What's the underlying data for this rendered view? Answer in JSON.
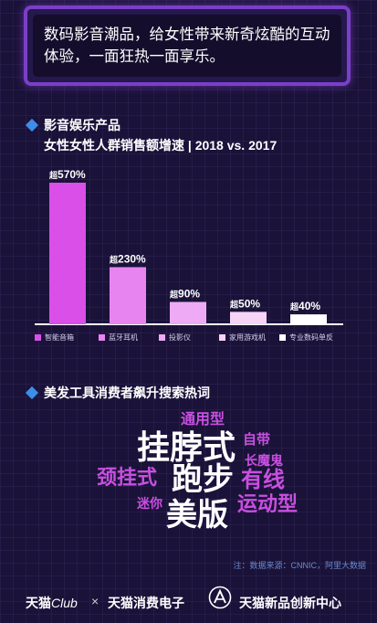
{
  "banner": {
    "text": "数码影音潮品，给女性带来新奇炫酷的互动体验，一面狂热一面享乐。"
  },
  "section1": {
    "title": "影音娱乐产品"
  },
  "chart_data": {
    "type": "bar",
    "title": "女性女性人群销售额增速 | 2018 vs. 2017",
    "categories": [
      "智能音箱",
      "蓝牙耳机",
      "投影仪",
      "家用游戏机",
      "专业数码单反"
    ],
    "values": [
      570,
      230,
      90,
      50,
      40
    ],
    "value_labels": [
      "570%",
      "230%",
      "90%",
      "50%",
      "40%"
    ],
    "value_prefix": "超",
    "colors": [
      "#d94fe8",
      "#e884f0",
      "#eeaaf4",
      "#f6d4f8",
      "#ffffff"
    ],
    "xlabel": "",
    "ylabel": "",
    "grid": false,
    "legend": "bottom"
  },
  "section2": {
    "title": "美发工具消费者飙升搜索热词"
  },
  "wordcloud": [
    {
      "text": "通用型",
      "color": "#c84fe0",
      "size": 16
    },
    {
      "text": "挂脖式",
      "color": "#ffffff",
      "size": 36
    },
    {
      "text": "自带",
      "color": "#c84fe0",
      "size": 15
    },
    {
      "text": "长魔鬼",
      "color": "#c84fe0",
      "size": 14
    },
    {
      "text": "颈挂式",
      "color": "#c84fe0",
      "size": 22
    },
    {
      "text": "跑步",
      "color": "#ffffff",
      "size": 34
    },
    {
      "text": "有线",
      "color": "#c84fe0",
      "size": 24
    },
    {
      "text": "迷你",
      "color": "#c84fe0",
      "size": 14
    },
    {
      "text": "美版",
      "color": "#ffffff",
      "size": 34
    },
    {
      "text": "运动型",
      "color": "#c84fe0",
      "size": 22
    }
  ],
  "source": "注：数据来源：CNNIC，阿里大数据",
  "footer": {
    "brand1_main": "天猫",
    "brand1_club": "Club",
    "cross": "×",
    "brand2": "天猫消费电子",
    "logo_icon": "triangle-a-logo-icon",
    "brand3": "天猫新品创新中心"
  }
}
